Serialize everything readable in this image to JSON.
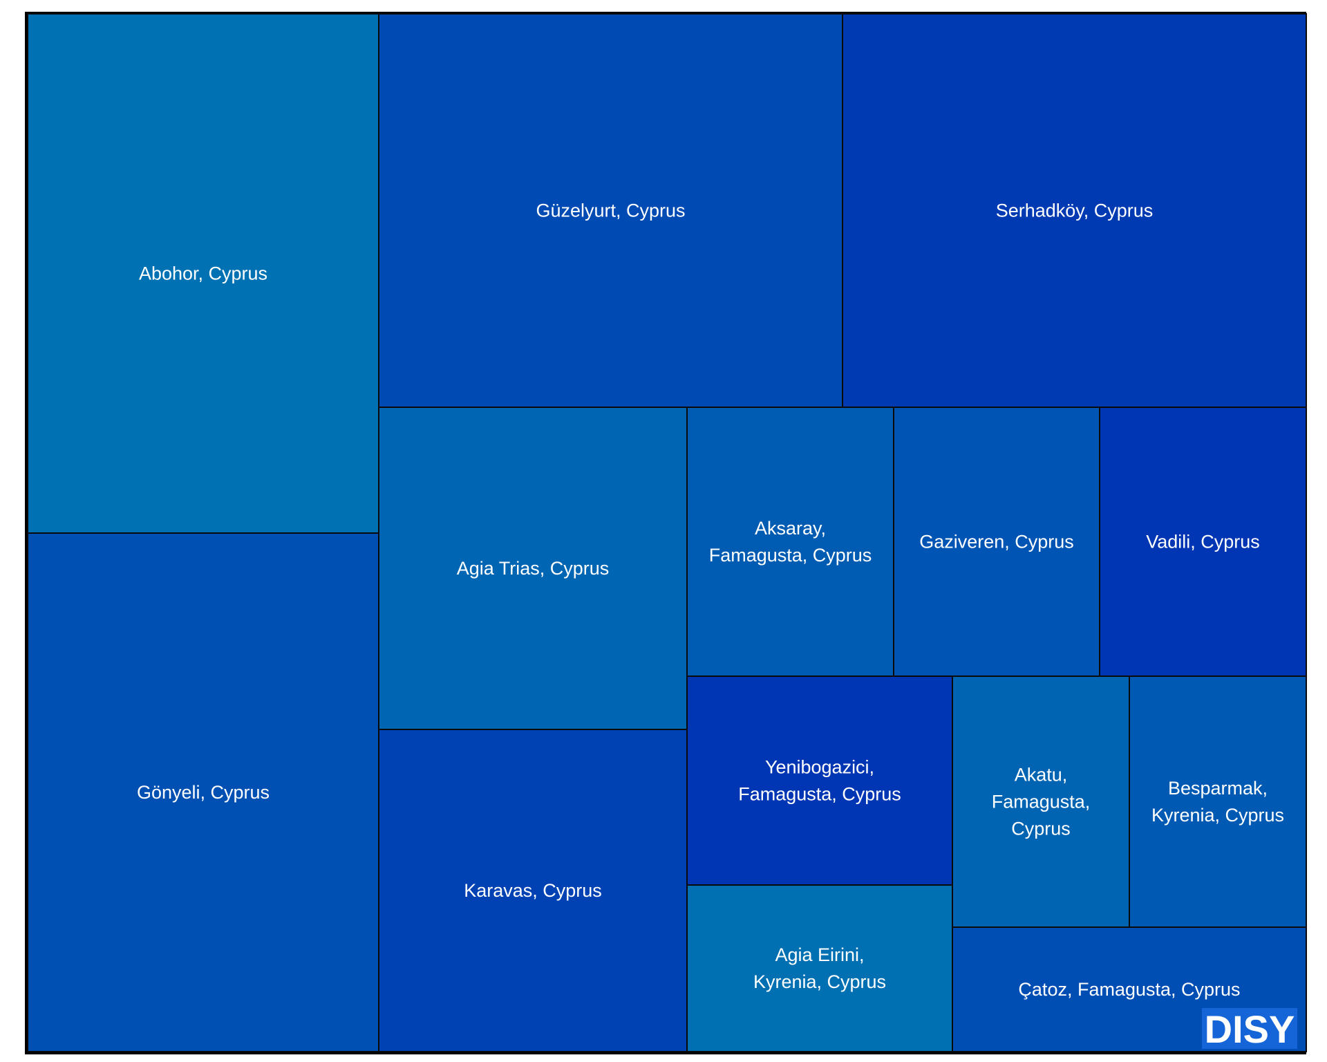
{
  "chart_data": {
    "type": "treemap",
    "tiles": [
      {
        "label": "Abohor, Cyprus",
        "color": "#0072b3"
      },
      {
        "label": "Gönyeli, Cyprus",
        "color": "#004fb3"
      },
      {
        "label": "Güzelyurt, Cyprus",
        "color": "#004ab3"
      },
      {
        "label": "Serhadköy, Cyprus",
        "color": "#003ab3"
      },
      {
        "label": "Agia Trias, Cyprus",
        "color": "#0066b3"
      },
      {
        "label": "Karavas, Cyprus",
        "color": "#0042b3"
      },
      {
        "label": "Aksaray, Famagusta, Cyprus",
        "color": "#005cb3"
      },
      {
        "label": "Gaziveren, Cyprus",
        "color": "#0054b3"
      },
      {
        "label": "Vadili, Cyprus",
        "color": "#0036b3"
      },
      {
        "label": "Yenibogazici, Famagusta, Cyprus",
        "color": "#0036b3"
      },
      {
        "label": "Agia Eirini, Kyrenia, Cyprus",
        "color": "#0070b3"
      },
      {
        "label": "Akatu, Famagusta, Cyprus",
        "color": "#0064b3"
      },
      {
        "label": "Besparmak, Kyrenia, Cyprus",
        "color": "#005ab3"
      },
      {
        "label": "Çatoz, Famagusta, Cyprus",
        "color": "#004db3"
      }
    ]
  },
  "watermark": {
    "text": "DISY",
    "color": "#1565d8"
  }
}
